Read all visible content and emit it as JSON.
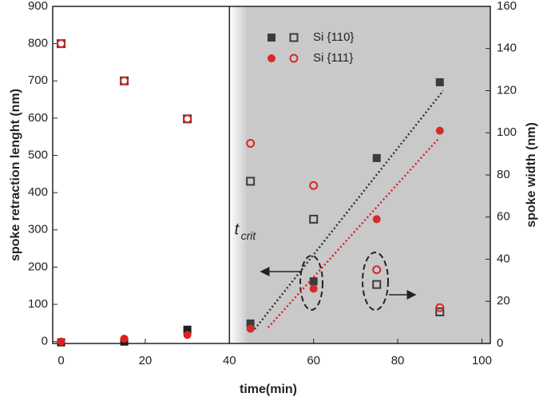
{
  "chart_data": {
    "type": "scatter",
    "x_label": "time(min)",
    "y_label": "spoke retraction lenght (nm)",
    "y2_label": "spoke width (nm)",
    "xlim": [
      -2,
      102
    ],
    "xticks": [
      0,
      20,
      40,
      60,
      80,
      100
    ],
    "ylim": [
      -5,
      900
    ],
    "yticks": [
      0,
      100,
      200,
      300,
      400,
      500,
      600,
      700,
      800,
      900
    ],
    "y2lim": [
      0,
      160
    ],
    "y2ticks": [
      0,
      20,
      40,
      60,
      80,
      100,
      120,
      140,
      160
    ],
    "shaded_from_x": 40,
    "legend": [
      {
        "label": "Si {110}",
        "color": "#3c3c3c",
        "marker": "square"
      },
      {
        "label": "Si {111}",
        "color": "#d42a2a",
        "marker": "circle"
      }
    ],
    "series": [
      {
        "marker": "square",
        "filled": false,
        "color": "#3c3c3c",
        "axis": "y",
        "x": [
          0,
          15,
          30
        ],
        "values": [
          800,
          700,
          598
        ]
      },
      {
        "marker": "circle",
        "filled": false,
        "color": "#d42a2a",
        "axis": "y",
        "x": [
          0,
          15,
          30
        ],
        "values": [
          800,
          700,
          598
        ]
      },
      {
        "marker": "square",
        "filled": true,
        "color": "#1e1e1e",
        "axis": "y",
        "x": [
          0,
          15,
          30
        ],
        "values": [
          -2,
          0,
          32
        ]
      },
      {
        "marker": "circle",
        "filled": true,
        "color": "#e02020",
        "axis": "y",
        "x": [
          0,
          15,
          30
        ],
        "values": [
          0,
          8,
          18
        ]
      },
      {
        "marker": "square",
        "filled": true,
        "color": "#3c3c3c",
        "axis": "y2",
        "x": [
          45,
          60,
          75,
          90
        ],
        "values": [
          9.5,
          29.5,
          88,
          124
        ]
      },
      {
        "marker": "square",
        "filled": false,
        "color": "#3c3c3c",
        "axis": "y2",
        "x": [
          45,
          60,
          75,
          90
        ],
        "values": [
          77,
          59,
          28,
          15
        ]
      },
      {
        "marker": "circle",
        "filled": true,
        "color": "#d42a2a",
        "axis": "y2",
        "x": [
          45,
          60,
          75,
          90
        ],
        "values": [
          7,
          26,
          59,
          101
        ]
      },
      {
        "marker": "circle",
        "filled": false,
        "color": "#d42a2a",
        "axis": "y2",
        "x": [
          45,
          60,
          75,
          90
        ],
        "values": [
          95,
          75,
          35,
          17
        ]
      }
    ],
    "fit_lines": [
      {
        "color": "#333333",
        "x": [
          46,
          90.8
        ],
        "values": [
          6.8,
          120
        ]
      },
      {
        "color": "#e02020",
        "x": [
          49.2,
          89.9
        ],
        "values": [
          7.6,
          97.7
        ]
      }
    ],
    "annotation": {
      "text": "t",
      "subscript": "crit",
      "x": 45,
      "y2": 50
    }
  }
}
